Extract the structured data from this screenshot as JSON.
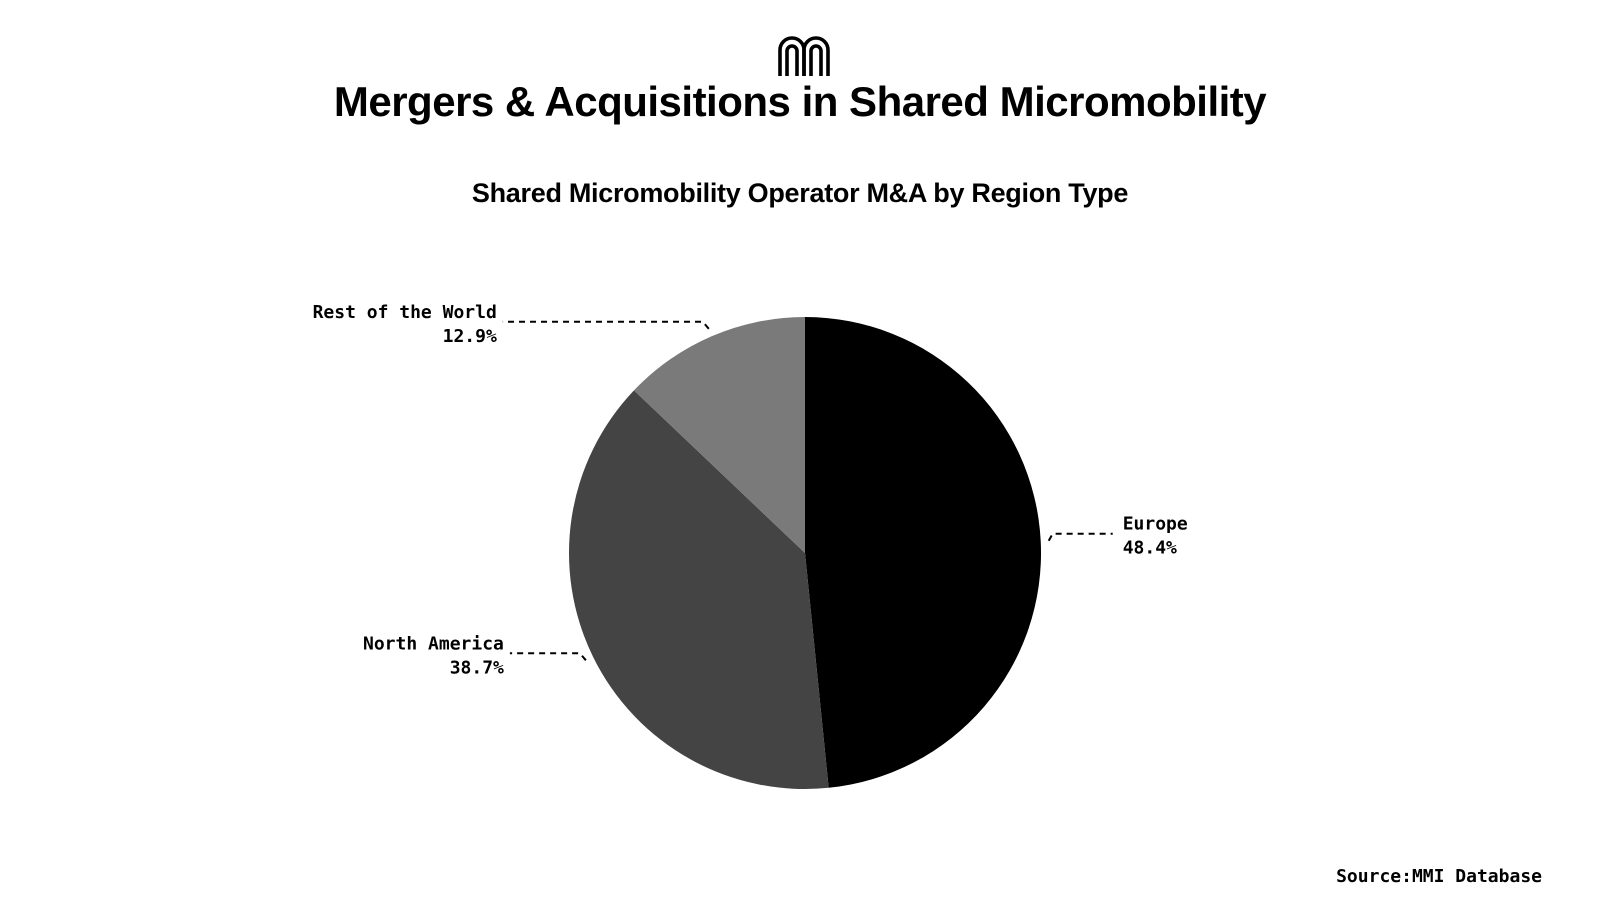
{
  "header": {
    "logo_icon": "mmi-logo-icon",
    "title": "Mergers & Acquisitions in Shared Micromobility"
  },
  "footer": {
    "source": "Source:MMI Database"
  },
  "chart_data": {
    "type": "pie",
    "title": "Shared Micromobility Operator M&A by Region Type",
    "start_angle_deg": 0,
    "direction": "clockwise",
    "slices": [
      {
        "label": "Europe",
        "value": 48.4,
        "value_label": "48.4%",
        "color": "#000000"
      },
      {
        "label": "North America",
        "value": 38.7,
        "value_label": "38.7%",
        "color": "#444444"
      },
      {
        "label": "Rest of the World",
        "value": 12.9,
        "value_label": "12.9%",
        "color": "#7a7a7a"
      }
    ],
    "legend": "none",
    "labels": "outside-with-dashed-leaders"
  }
}
